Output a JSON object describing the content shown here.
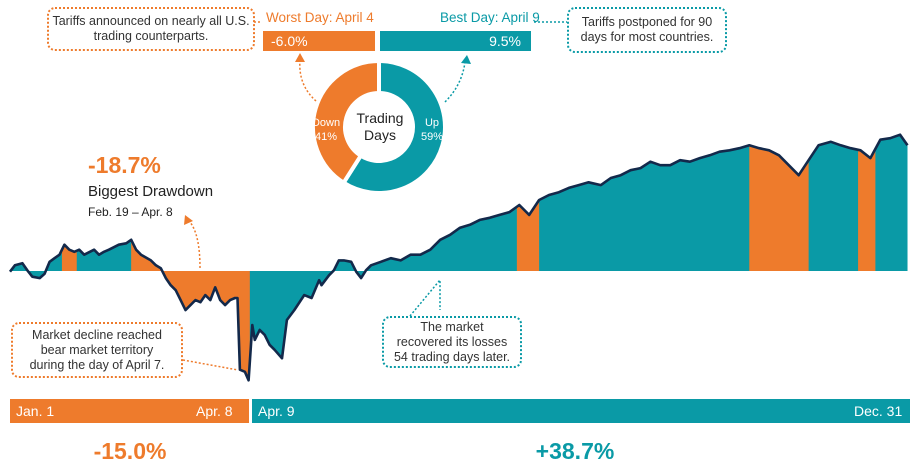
{
  "colors": {
    "up": "#0a9aa6",
    "down": "#ee7b2c",
    "line": "#13294b"
  },
  "top": {
    "left_note": "Tariffs announced on nearly all U.S. trading counterparts.",
    "right_note": "Tariffs postponed for 90 days for most countries.",
    "worst_label": "Worst Day: April 4",
    "worst_value": "-6.0%",
    "best_label": "Best Day: April 9",
    "best_value": "9.5%"
  },
  "donut": {
    "center_title": "Trading Days",
    "slices": [
      {
        "label": "Down",
        "value": 41,
        "text": "41%"
      },
      {
        "label": "Up",
        "value": 59,
        "text": "59%"
      }
    ]
  },
  "drawdown": {
    "value": "-18.7%",
    "title": "Biggest Drawdown",
    "range": "Feb. 19 – Apr. 8"
  },
  "notes": {
    "bear": "Market decline reached bear market territory during the day of April 7.",
    "recovery": "The market recovered its losses 54 trading days later."
  },
  "periods": [
    {
      "start": "Jan. 1",
      "end": "Apr. 8",
      "return": "-15.0%"
    },
    {
      "start": "Apr. 9",
      "end": "Dec. 31",
      "return": "+38.7%"
    }
  ],
  "chart_data": {
    "type": "area",
    "x_unit": "day of year",
    "y_unit": "% change (approx.)",
    "xlim": [
      1,
      365
    ],
    "points": [
      [
        1,
        -0.1
      ],
      [
        3,
        0.8
      ],
      [
        6,
        1.1
      ],
      [
        8,
        0.1
      ],
      [
        10,
        -0.8
      ],
      [
        13,
        -1.0
      ],
      [
        15,
        -0.4
      ],
      [
        17,
        1.3
      ],
      [
        19,
        1.8
      ],
      [
        21,
        2.3
      ],
      [
        23,
        3.7
      ],
      [
        25,
        3.0
      ],
      [
        27,
        2.7
      ],
      [
        29,
        3.0
      ],
      [
        31,
        2.3
      ],
      [
        35,
        3.0
      ],
      [
        37,
        2.3
      ],
      [
        39,
        2.7
      ],
      [
        41,
        3.0
      ],
      [
        45,
        3.7
      ],
      [
        48,
        3.9
      ],
      [
        50,
        4.4
      ],
      [
        52,
        3.0
      ],
      [
        54,
        2.3
      ],
      [
        58,
        1.5
      ],
      [
        60,
        0.8
      ],
      [
        62,
        0.4
      ],
      [
        64,
        -1.0
      ],
      [
        66,
        -2.0
      ],
      [
        68,
        -2.7
      ],
      [
        70,
        -4.1
      ],
      [
        72,
        -5.5
      ],
      [
        74,
        -4.8
      ],
      [
        76,
        -4.1
      ],
      [
        78,
        -4.4
      ],
      [
        80,
        -3.4
      ],
      [
        82,
        -4.1
      ],
      [
        84,
        -2.3
      ],
      [
        86,
        -4.1
      ],
      [
        88,
        -4.8
      ],
      [
        90,
        -4.1
      ],
      [
        92,
        -3.8
      ],
      [
        93,
        -3.8
      ],
      [
        94,
        -13.9
      ],
      [
        96,
        -14.2
      ],
      [
        97.5,
        -15.4
      ],
      [
        99,
        -7.6
      ],
      [
        100,
        -9.7
      ],
      [
        102,
        -8.3
      ],
      [
        104,
        -9.0
      ],
      [
        106,
        -10.4
      ],
      [
        108,
        -11.1
      ],
      [
        111,
        -12.3
      ],
      [
        113,
        -6.9
      ],
      [
        116,
        -5.5
      ],
      [
        120,
        -3.4
      ],
      [
        123,
        -3.8
      ],
      [
        126,
        -1.3
      ],
      [
        127,
        -2.0
      ],
      [
        130,
        -0.6
      ],
      [
        132,
        0.1
      ],
      [
        134,
        1.5
      ],
      [
        136,
        1.5
      ],
      [
        139,
        1.3
      ],
      [
        141,
        -0.1
      ],
      [
        143,
        -1.0
      ],
      [
        145,
        0.1
      ],
      [
        147,
        0.8
      ],
      [
        151,
        1.3
      ],
      [
        155,
        1.8
      ],
      [
        159,
        1.5
      ],
      [
        163,
        2.3
      ],
      [
        167,
        2.3
      ],
      [
        171,
        3.0
      ],
      [
        175,
        4.4
      ],
      [
        179,
        5.1
      ],
      [
        183,
        6.1
      ],
      [
        187,
        6.5
      ],
      [
        191,
        7.2
      ],
      [
        195,
        7.5
      ],
      [
        199,
        7.9
      ],
      [
        203,
        8.3
      ],
      [
        207,
        9.3
      ],
      [
        211,
        7.9
      ],
      [
        215,
        10.0
      ],
      [
        219,
        10.7
      ],
      [
        223,
        11.1
      ],
      [
        227,
        11.7
      ],
      [
        231,
        12.1
      ],
      [
        235,
        12.5
      ],
      [
        240,
        12.1
      ],
      [
        244,
        13.1
      ],
      [
        248,
        13.5
      ],
      [
        252,
        14.2
      ],
      [
        256,
        14.5
      ],
      [
        260,
        15.4
      ],
      [
        264,
        14.9
      ],
      [
        268,
        14.9
      ],
      [
        272,
        15.6
      ],
      [
        276,
        15.4
      ],
      [
        280,
        15.9
      ],
      [
        284,
        16.3
      ],
      [
        288,
        16.8
      ],
      [
        292,
        17.0
      ],
      [
        296,
        17.3
      ],
      [
        300,
        17.7
      ],
      [
        304,
        17.3
      ],
      [
        308,
        17.0
      ],
      [
        312,
        16.3
      ],
      [
        316,
        14.9
      ],
      [
        320,
        13.5
      ],
      [
        324,
        15.6
      ],
      [
        328,
        17.7
      ],
      [
        333,
        18.2
      ],
      [
        337,
        17.7
      ],
      [
        341,
        17.3
      ],
      [
        345,
        17.0
      ],
      [
        349,
        15.9
      ],
      [
        353,
        18.5
      ],
      [
        357,
        18.7
      ],
      [
        361,
        19.2
      ],
      [
        364,
        17.7
      ]
    ],
    "down_periods": [
      [
        22,
        28
      ],
      [
        50,
        98
      ],
      [
        206,
        215
      ],
      [
        300,
        324
      ],
      [
        344,
        351
      ]
    ]
  }
}
